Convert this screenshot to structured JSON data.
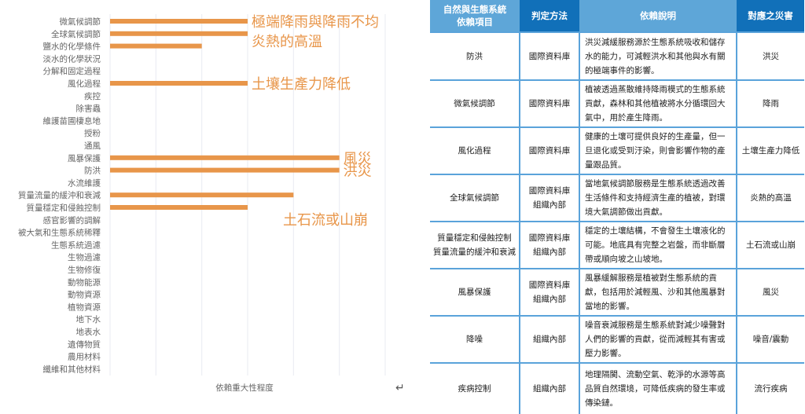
{
  "chart_data": {
    "type": "bar",
    "orientation": "horizontal",
    "categories": [
      "微氣候調節",
      "全球氣候調節",
      "鹽水的化學條件",
      "淡水的化學狀況",
      "分解和固定過程",
      "風化過程",
      "疾控",
      "除害蟲",
      "維護苗圃棲息地",
      "授粉",
      "通風",
      "風暴保護",
      "防洪",
      "水流維護",
      "質量流量的緩沖和衰減",
      "質量穩定和侵蝕控制",
      "感官影響的調解",
      "被大氣和生態系統稀釋",
      "生態系統過濾",
      "生物過濾",
      "生物修復",
      "動物能源",
      "動物資源",
      "植物資源",
      "地下水",
      "地表水",
      "遺傳物質",
      "農用材料",
      "纖維和其他材料"
    ],
    "values": [
      3,
      3,
      2,
      0,
      0,
      3,
      0,
      0,
      0,
      0,
      0,
      5,
      5,
      0,
      4,
      3,
      0,
      0,
      0,
      0,
      0,
      0,
      0,
      0,
      0,
      0,
      0,
      0,
      0
    ],
    "xlabel": "依賴重大性程度",
    "xlim": [
      0,
      6
    ],
    "grid": true,
    "bar_color": "#e8964a",
    "annotations": [
      {
        "category": "微氣候調節",
        "text": "極端降雨與降雨不均"
      },
      {
        "category": "全球氣候調節",
        "text": "炎熱的高溫"
      },
      {
        "category": "風化過程",
        "text": "土壤生產力降低"
      },
      {
        "category": "風暴保護",
        "text": "風災"
      },
      {
        "category": "防洪",
        "text": "洪災"
      },
      {
        "category": "質量穩定和侵蝕控制",
        "text": "土石流或山崩"
      }
    ]
  },
  "table": {
    "headers": [
      "自然與生態系統依賴項目",
      "判定方法",
      "依賴說明",
      "對應之災害"
    ],
    "header_line1": "自然與生態系統",
    "header_line2": "依賴項目",
    "rows": [
      {
        "item": "防洪",
        "method": "國際資料庫",
        "desc": "洪災減緩服務源於生態系統吸收和儲存水的能力，可減輕洪水和其他與水有關的極端事件的影響。",
        "hazard": "洪災"
      },
      {
        "item": "微氣候調節",
        "method": "國際資料庫",
        "desc": "植被透過蒸散維持降雨模式的生態系統貢獻，森林和其他植被將水分循環回大氣中，用於產生降雨。",
        "hazard": "降雨"
      },
      {
        "item": "風化過程",
        "method": "國際資料庫",
        "desc": "健康的土壤可提供良好的生產量，但一旦退化或受到汙染，則會影響作物的產量跟品質。",
        "hazard": "土壤生產力降低"
      },
      {
        "item": "全球氣候調節",
        "method": "國際資料庫\n組織內部",
        "desc": "當地氣候調節服務是生態系統透過改善生活條件和支持經濟生產的植被，對環境大氣調節做出貢獻。",
        "hazard": "炎熱的高溫"
      },
      {
        "item": "質量穩定和侵蝕控制\n質量流量的緩沖和衰減",
        "method": "國際資料庫\n組織內部",
        "desc": "穩定的土壤結構，不會發生土壤液化的可能。地底具有完整之岩盤，而非斷層帶或順向坡之山坡地。",
        "hazard": "土石流或山崩"
      },
      {
        "item": "風暴保護",
        "method": "國際資料庫\n組織內部",
        "desc": "風暴緩解服務是植被對生態系統的貢獻，包括用於減輕風、沙和其他風暴對當地的影響。",
        "hazard": "風災"
      },
      {
        "item": "降噪",
        "method": "組織內部",
        "desc": "噪音衰減服務是生態系統對減少噪聲對人們的影響的貢獻，從而減輕其有害或壓力影響。",
        "hazard": "噪音/震動"
      },
      {
        "item": "疾病控制",
        "method": "組織內部",
        "desc": "地理隔閡、流動空氣、乾淨的水源等高品質自然環境，可降低疾病的發生率或傳染鏈。",
        "hazard": "流行疾病"
      }
    ],
    "colors": {
      "header_light": "#5ea6d8",
      "header_dark": "#1170b9",
      "border": "#5aa3da"
    }
  },
  "return_symbol": "↵"
}
